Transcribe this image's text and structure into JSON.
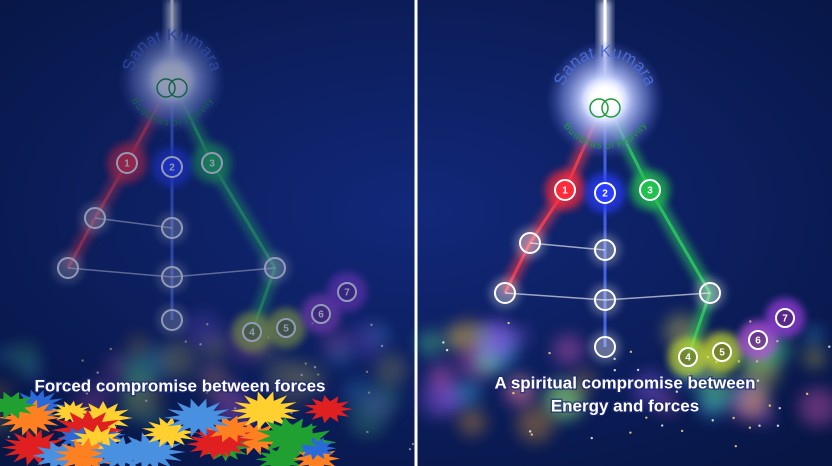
{
  "panels": [
    {
      "title": "Sanat Kumara",
      "subtitle": "Buddhas of Activity",
      "nodes": [
        "1",
        "2",
        "3",
        "4",
        "5",
        "6",
        "7"
      ],
      "caption": [
        "Forced compromise between forces"
      ]
    },
    {
      "title": "Sanat Kumara",
      "subtitle": "Buddhas of Activity",
      "nodes": [
        "1",
        "2",
        "3",
        "4",
        "5",
        "6",
        "7"
      ],
      "caption": [
        "A spiritual compromise between",
        "Energy and forces"
      ]
    }
  ]
}
